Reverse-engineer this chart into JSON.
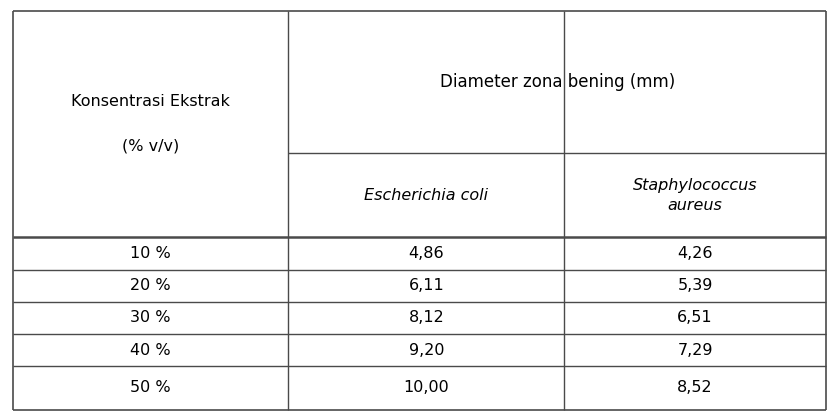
{
  "col1_header": "Konsentrasi Ekstrak\n\n(% v/v)",
  "col2_header": "Escherichia coli",
  "col3_header": "Staphylococcus\naureus",
  "top_header": "Diameter zona bening (mm)",
  "rows": [
    [
      "10 %",
      "4,86",
      "4,26"
    ],
    [
      "20 %",
      "6,11",
      "5,39"
    ],
    [
      "30 %",
      "8,12",
      "6,51"
    ],
    [
      "40 %",
      "9,20",
      "7,29"
    ],
    [
      "50 %",
      "10,00",
      "8,52"
    ]
  ],
  "bg_color": "#ffffff",
  "line_color": "#4a4a4a",
  "text_color": "#000000",
  "font_size": 11.5,
  "col_bounds": [
    0.015,
    0.345,
    0.675,
    0.988
  ],
  "row_tops": [
    0.975,
    0.635,
    0.435,
    0.358,
    0.282,
    0.205,
    0.128,
    0.025
  ]
}
